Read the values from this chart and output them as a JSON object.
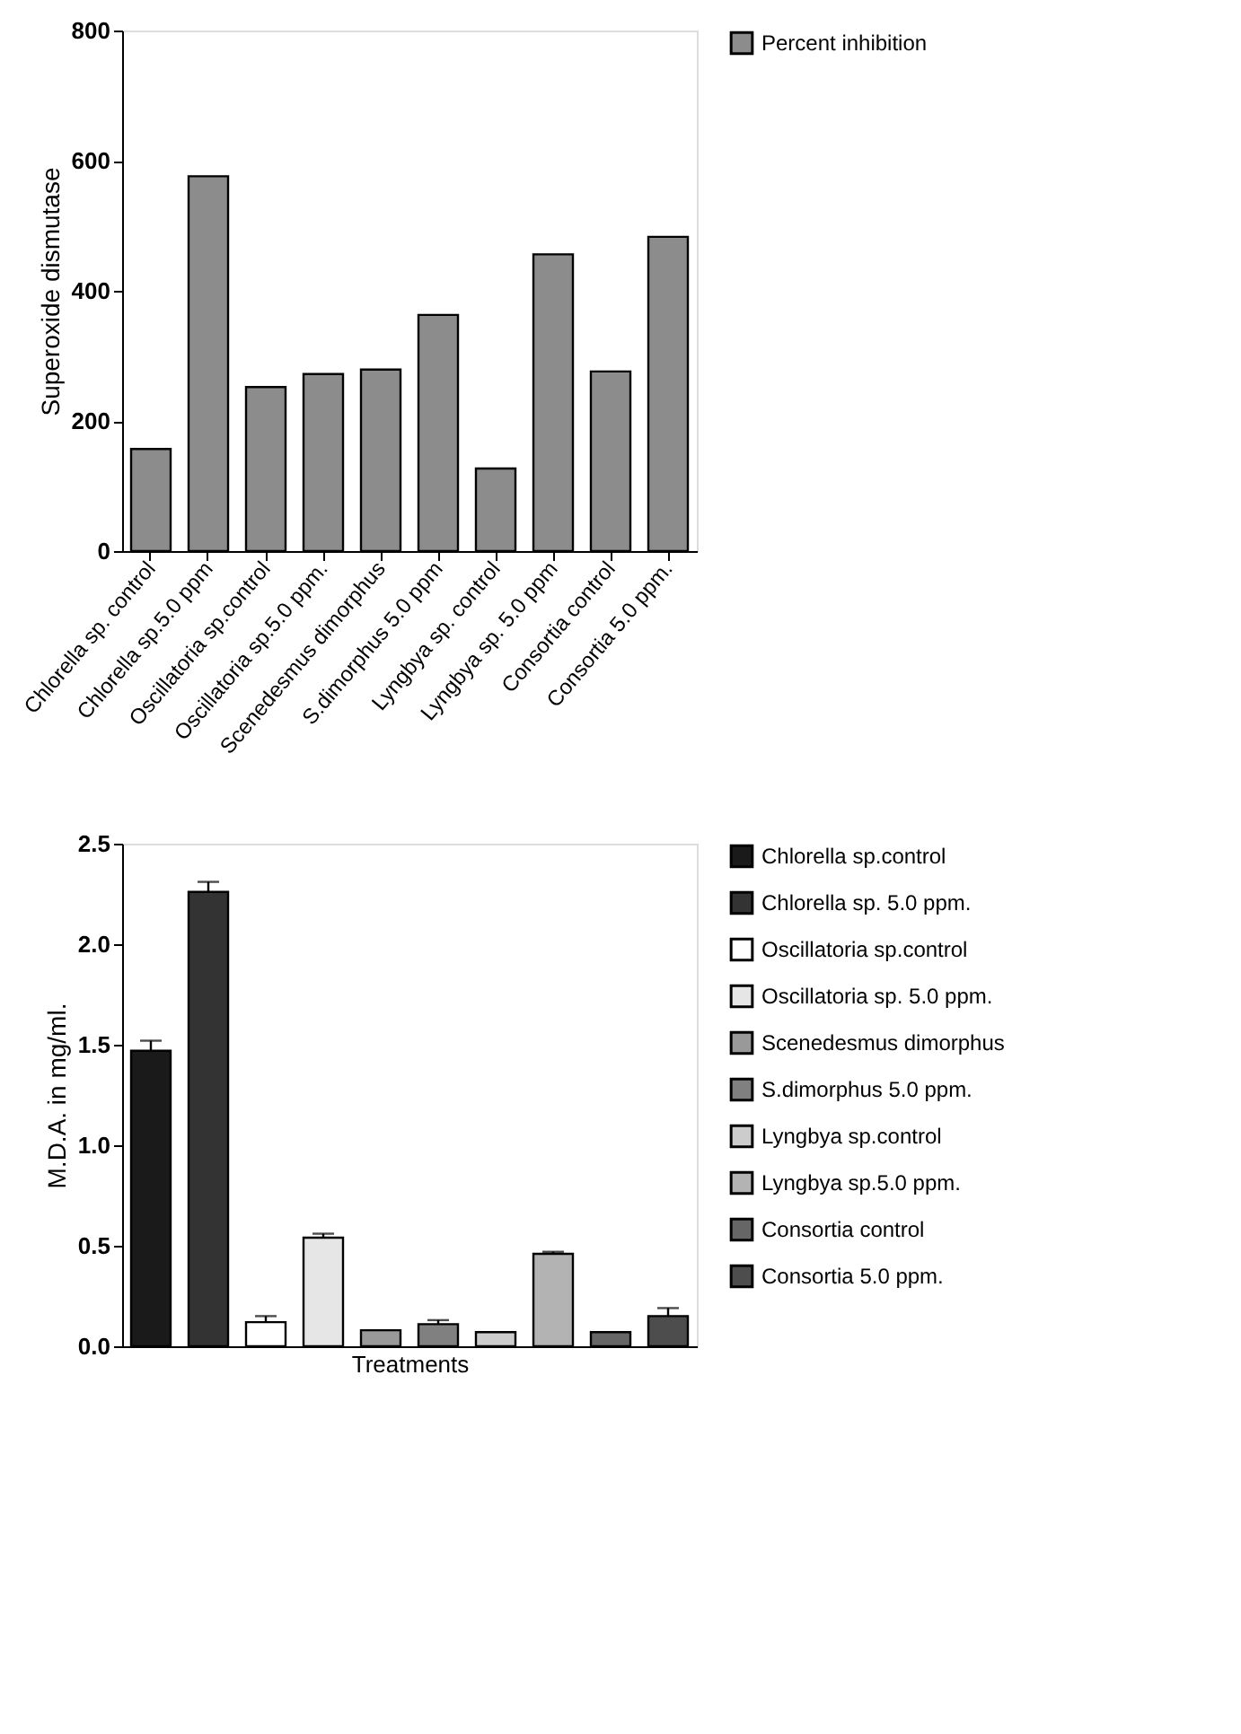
{
  "chart_data": [
    {
      "type": "bar",
      "ylabel": "Superoxide dismutase",
      "categories": [
        "Chlorella sp. control",
        "Chlorella sp.5.0 ppm",
        "Oscillatoria sp.control",
        "Oscillatoria sp.5.0 ppm.",
        "Scenedesmus dimorphus",
        "S.dimorphus 5.0 ppm",
        "Lyngbya sp. control",
        "Lyngbya sp. 5.0 ppm",
        "Consortia control",
        "Consortia 5.0 ppm."
      ],
      "series": [
        {
          "name": "Percent inhibition",
          "color": "#8c8c8c",
          "values": [
            157,
            576,
            252,
            272,
            279,
            363,
            127,
            456,
            276,
            483
          ]
        }
      ],
      "ylim": [
        0,
        800
      ],
      "yticks": [
        0,
        200,
        400,
        600,
        800
      ],
      "grid": false,
      "legend": "right"
    },
    {
      "type": "bar",
      "ylabel": "M.D.A. in mg/ml.",
      "xlabel": "Treatments",
      "categories": [
        null,
        null,
        null,
        null,
        null,
        null,
        null,
        null,
        null,
        null
      ],
      "series": [
        {
          "name": "Chlorella sp.control",
          "color": "#1a1a1a",
          "values": [
            1.47,
            null,
            null,
            null,
            null,
            null,
            null,
            null,
            null,
            null
          ],
          "errors": [
            0.05,
            null,
            null,
            null,
            null,
            null,
            null,
            null,
            null,
            null
          ]
        },
        {
          "name": "Chlorella sp. 5.0 ppm.",
          "color": "#333333",
          "values": [
            null,
            2.26,
            null,
            null,
            null,
            null,
            null,
            null,
            null,
            null
          ],
          "errors": [
            null,
            0.05,
            null,
            null,
            null,
            null,
            null,
            null,
            null,
            null
          ]
        },
        {
          "name": "Oscillatoria sp.control",
          "color": "#ffffff",
          "values": [
            null,
            null,
            0.12,
            null,
            null,
            null,
            null,
            null,
            null,
            null
          ],
          "errors": [
            null,
            null,
            0.03,
            null,
            null,
            null,
            null,
            null,
            null,
            null
          ]
        },
        {
          "name": "Oscillatoria sp. 5.0 ppm.",
          "color": "#e6e6e6",
          "values": [
            null,
            null,
            null,
            0.54,
            null,
            null,
            null,
            null,
            null,
            null
          ],
          "errors": [
            null,
            null,
            null,
            0.02,
            null,
            null,
            null,
            null,
            null,
            null
          ]
        },
        {
          "name": "Scenedesmus dimorphus",
          "color": "#999999",
          "values": [
            null,
            null,
            null,
            null,
            0.08,
            null,
            null,
            null,
            null,
            null
          ]
        },
        {
          "name": "S.dimorphus 5.0 ppm.",
          "color": "#808080",
          "values": [
            null,
            null,
            null,
            null,
            null,
            0.11,
            null,
            null,
            null,
            null
          ],
          "errors": [
            null,
            null,
            null,
            null,
            null,
            0.02,
            null,
            null,
            null,
            null
          ]
        },
        {
          "name": "Lyngbya sp.control",
          "color": "#cccccc",
          "values": [
            null,
            null,
            null,
            null,
            null,
            null,
            0.07,
            null,
            null,
            null
          ]
        },
        {
          "name": "Lyngbya sp.5.0 ppm.",
          "color": "#b3b3b3",
          "values": [
            null,
            null,
            null,
            null,
            null,
            null,
            null,
            0.46,
            null,
            null
          ],
          "errors": [
            null,
            null,
            null,
            null,
            null,
            null,
            null,
            0.01,
            null,
            null
          ]
        },
        {
          "name": "Consortia control",
          "color": "#666666",
          "values": [
            null,
            null,
            null,
            null,
            null,
            null,
            null,
            null,
            0.07,
            null
          ]
        },
        {
          "name": "Consortia 5.0 ppm.",
          "color": "#4d4d4d",
          "values": [
            null,
            null,
            null,
            null,
            null,
            null,
            null,
            null,
            null,
            0.15
          ],
          "errors": [
            null,
            null,
            null,
            null,
            null,
            null,
            null,
            null,
            null,
            0.04
          ]
        }
      ],
      "ylim": [
        0,
        2.5
      ],
      "yticks": [
        {
          "value": 0,
          "label": "0.0"
        },
        0.5,
        {
          "value": 1,
          "label": "1.0"
        },
        1.5,
        {
          "value": 2,
          "label": "2.0"
        },
        2.5
      ],
      "grid": false,
      "legend": "right"
    }
  ]
}
